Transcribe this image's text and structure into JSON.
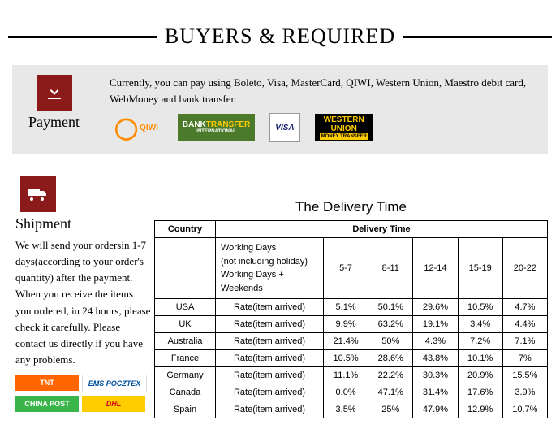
{
  "page_title": "BUYERS & REQUIRED",
  "payment": {
    "label": "Payment",
    "text": "Currently, you can pay using Boleto, Visa, MasterCard, QIWI, Western Union, Maestro debit card, WebMoney and bank transfer.",
    "logos": {
      "qiwi": "QIWI",
      "bank_transfer_a": "BANK",
      "bank_transfer_b": "TRANSFER",
      "bank_transfer_sub": "INTERNATIONAL",
      "visa": "VISA",
      "wu_a": "WESTERN",
      "wu_b": "UNION",
      "wu_sub": "MONEY TRANSFER"
    }
  },
  "shipment": {
    "label": "Shipment",
    "text": "We will send your ordersin 1-7 days(according to your order's quantity) after the payment. When you receive the items you ordered, in 24 hours, please check it carefully. Please contact us directly if you have any problems.",
    "carriers": {
      "tnt": "TNT",
      "ems": "EMS POCZTEX",
      "chinapost": "CHINA POST",
      "dhl": "DHL"
    }
  },
  "delivery": {
    "title": "The Delivery Time",
    "header_country": "Country",
    "header_delivery": "Delivery Time",
    "working_days_line1": "Working Days",
    "working_days_line2": "(not including holiday)",
    "working_days_line3": "Working Days + Weekends",
    "rate_label": "Rate(item arrived)",
    "buckets": [
      "5-7",
      "8-11",
      "12-14",
      "15-19",
      "20-22"
    ],
    "rows": [
      {
        "country": "USA",
        "rates": [
          "5.1%",
          "50.1%",
          "29.6%",
          "10.5%",
          "4.7%"
        ]
      },
      {
        "country": "UK",
        "rates": [
          "9.9%",
          "63.2%",
          "19.1%",
          "3.4%",
          "4.4%"
        ]
      },
      {
        "country": "Australia",
        "rates": [
          "21.4%",
          "50%",
          "4.3%",
          "7.2%",
          "7.1%"
        ]
      },
      {
        "country": "France",
        "rates": [
          "10.5%",
          "28.6%",
          "43.8%",
          "10.1%",
          "7%"
        ]
      },
      {
        "country": "Germany",
        "rates": [
          "11.1%",
          "22.2%",
          "30.3%",
          "20.9%",
          "15.5%"
        ]
      },
      {
        "country": "Canada",
        "rates": [
          "0.0%",
          "47.1%",
          "31.4%",
          "17.6%",
          "3.9%"
        ]
      },
      {
        "country": "Spain",
        "rates": [
          "3.5%",
          "25%",
          "47.9%",
          "12.9%",
          "10.7%"
        ]
      }
    ]
  },
  "colors": {
    "icon_bg": "#8b1a1a",
    "panel_bg": "#e8e8e8",
    "table_border": "#000000"
  }
}
